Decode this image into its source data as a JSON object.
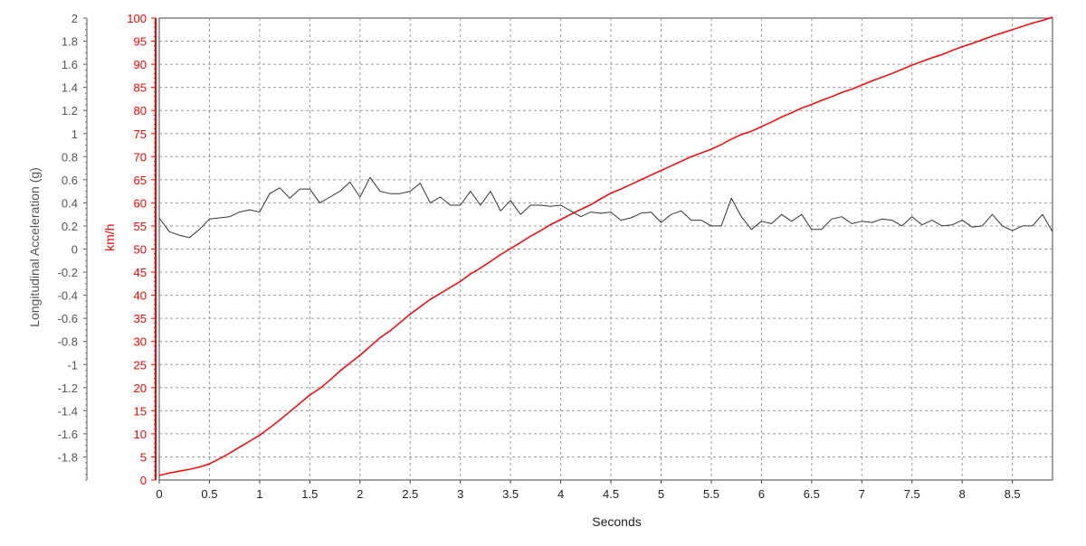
{
  "chart_data": {
    "type": "line",
    "title": "",
    "xlabel": "Seconds",
    "xlim": [
      0,
      8.9
    ],
    "xticks": [
      "0",
      "0.5",
      "1",
      "1.5",
      "2",
      "2.5",
      "3",
      "3.5",
      "4",
      "4.5",
      "5",
      "5.5",
      "6",
      "6.5",
      "7",
      "7.5",
      "8",
      "8.5"
    ],
    "grid": true,
    "axes": {
      "left_outer": {
        "label": "Longitudinal Acceleration (g)",
        "color": "#555555",
        "range": [
          -2,
          2
        ],
        "ticks": [
          "2",
          "1.8",
          "1.6",
          "1.4",
          "1.2",
          "1",
          "0.8",
          "0.6",
          "0.4",
          "0.2",
          "0",
          "-0.2",
          "-0.4",
          "-0.6",
          "-0.8",
          "-1",
          "-1.2",
          "-1.4",
          "-1.6",
          "-1.8"
        ]
      },
      "left_inner": {
        "label": "km/h",
        "color": "#ff0000",
        "range": [
          0,
          100
        ],
        "ticks": [
          "100",
          "95",
          "90",
          "85",
          "80",
          "75",
          "70",
          "65",
          "60",
          "55",
          "50",
          "45",
          "40",
          "35",
          "30",
          "25",
          "20",
          "15",
          "10",
          "5",
          "0"
        ]
      }
    },
    "series": [
      {
        "axis": "left_inner",
        "color": "#ff0000",
        "x": [
          0,
          0.1,
          0.2,
          0.3,
          0.4,
          0.5,
          0.6,
          0.7,
          0.8,
          0.9,
          1.0,
          1.1,
          1.2,
          1.3,
          1.4,
          1.5,
          1.6,
          1.7,
          1.8,
          1.9,
          2.0,
          2.1,
          2.2,
          2.3,
          2.4,
          2.5,
          2.6,
          2.7,
          2.8,
          2.9,
          3.0,
          3.1,
          3.2,
          3.3,
          3.4,
          3.5,
          3.6,
          3.7,
          3.8,
          3.9,
          4.0,
          4.1,
          4.2,
          4.3,
          4.4,
          4.5,
          4.6,
          4.7,
          4.8,
          4.9,
          5.0,
          5.1,
          5.2,
          5.3,
          5.4,
          5.5,
          5.6,
          5.7,
          5.8,
          5.9,
          6.0,
          6.1,
          6.2,
          6.3,
          6.4,
          6.5,
          6.6,
          6.7,
          6.8,
          6.9,
          7.0,
          7.1,
          7.2,
          7.3,
          7.4,
          7.5,
          7.6,
          7.7,
          7.8,
          7.9,
          8.0,
          8.1,
          8.2,
          8.3,
          8.4,
          8.5,
          8.6,
          8.7,
          8.8,
          8.9
        ],
        "values": [
          1,
          1.5,
          1.9,
          2.3,
          2.8,
          3.5,
          4.6,
          5.8,
          7.1,
          8.4,
          9.7,
          11.3,
          13.0,
          14.8,
          16.6,
          18.4,
          19.8,
          21.6,
          23.6,
          25.3,
          27.0,
          28.9,
          30.8,
          32.3,
          34.1,
          35.9,
          37.5,
          39.1,
          40.4,
          41.7,
          43.0,
          44.6,
          45.9,
          47.3,
          48.8,
          50.1,
          51.4,
          52.8,
          54.0,
          55.3,
          56.4,
          57.5,
          58.6,
          59.6,
          60.9,
          62.1,
          63.0,
          64.0,
          65.0,
          66.0,
          67.0,
          68.0,
          69.0,
          70.0,
          70.8,
          71.6,
          72.6,
          73.8,
          74.8,
          75.5,
          76.5,
          77.5,
          78.6,
          79.5,
          80.5,
          81.3,
          82.2,
          83.0,
          83.9,
          84.6,
          85.5,
          86.4,
          87.2,
          88.0,
          88.9,
          89.8,
          90.6,
          91.4,
          92.1,
          93.0,
          93.8,
          94.5,
          95.3,
          96.1,
          96.8,
          97.5,
          98.2,
          98.9,
          99.5,
          100.2
        ]
      },
      {
        "axis": "left_outer",
        "color": "#333333",
        "x": [
          0,
          0.1,
          0.2,
          0.3,
          0.4,
          0.5,
          0.6,
          0.7,
          0.8,
          0.9,
          1.0,
          1.1,
          1.2,
          1.3,
          1.4,
          1.5,
          1.6,
          1.7,
          1.8,
          1.9,
          2.0,
          2.1,
          2.2,
          2.3,
          2.4,
          2.5,
          2.6,
          2.7,
          2.8,
          2.9,
          3.0,
          3.1,
          3.2,
          3.3,
          3.4,
          3.5,
          3.6,
          3.7,
          3.8,
          3.9,
          4.0,
          4.1,
          4.2,
          4.3,
          4.4,
          4.5,
          4.6,
          4.7,
          4.8,
          4.9,
          5.0,
          5.1,
          5.2,
          5.3,
          5.4,
          5.5,
          5.6,
          5.7,
          5.8,
          5.9,
          6.0,
          6.1,
          6.2,
          6.3,
          6.4,
          6.5,
          6.6,
          6.7,
          6.8,
          6.9,
          7.0,
          7.1,
          7.2,
          7.3,
          7.4,
          7.5,
          7.6,
          7.7,
          7.8,
          7.9,
          8.0,
          8.1,
          8.2,
          8.3,
          8.4,
          8.5,
          8.6,
          8.7,
          8.8,
          8.9
        ],
        "values": [
          0.27,
          0.15,
          0.12,
          0.1,
          0.17,
          0.26,
          0.27,
          0.28,
          0.32,
          0.34,
          0.32,
          0.48,
          0.53,
          0.44,
          0.52,
          0.52,
          0.4,
          0.45,
          0.5,
          0.58,
          0.45,
          0.62,
          0.5,
          0.48,
          0.48,
          0.5,
          0.57,
          0.4,
          0.45,
          0.38,
          0.38,
          0.5,
          0.38,
          0.5,
          0.33,
          0.42,
          0.3,
          0.38,
          0.38,
          0.37,
          0.38,
          0.33,
          0.28,
          0.32,
          0.31,
          0.32,
          0.25,
          0.27,
          0.31,
          0.32,
          0.23,
          0.3,
          0.33,
          0.25,
          0.25,
          0.2,
          0.2,
          0.44,
          0.28,
          0.17,
          0.24,
          0.22,
          0.3,
          0.24,
          0.3,
          0.17,
          0.17,
          0.26,
          0.28,
          0.22,
          0.24,
          0.23,
          0.26,
          0.25,
          0.2,
          0.28,
          0.21,
          0.25,
          0.2,
          0.21,
          0.25,
          0.19,
          0.2,
          0.3,
          0.2,
          0.16,
          0.2,
          0.2,
          0.3,
          0.15
        ]
      }
    ]
  }
}
